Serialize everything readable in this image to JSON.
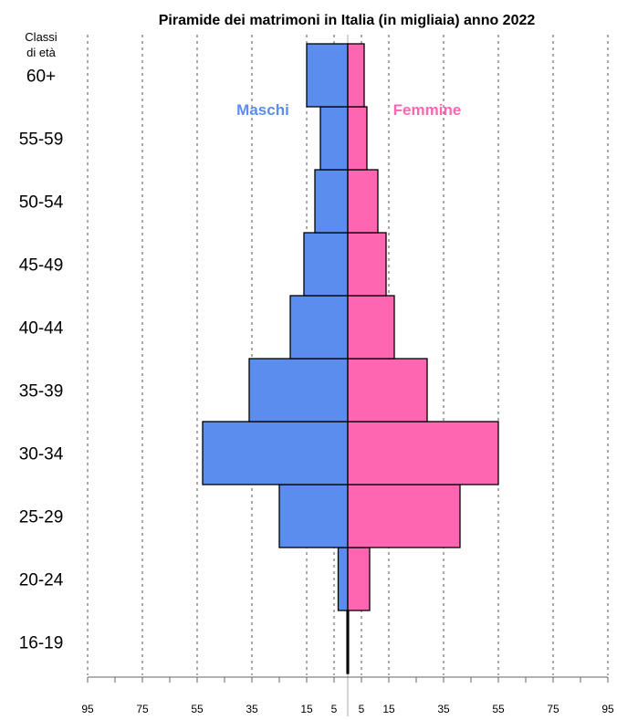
{
  "chart_data": {
    "type": "bar",
    "orientation": "horizontal-population-pyramid",
    "title": "Piramide dei matrimoni in Italia (in migliaia) anno 2022",
    "y_header": [
      "Classi",
      "di età"
    ],
    "categories": [
      "16-19",
      "20-24",
      "25-29",
      "30-34",
      "35-39",
      "40-44",
      "45-49",
      "50-54",
      "55-59",
      "60+"
    ],
    "series": [
      {
        "name": "Maschi",
        "color": "#5b8def",
        "side": "left",
        "values": [
          0.3,
          3.5,
          25,
          53,
          36,
          21,
          16,
          12,
          10,
          15
        ]
      },
      {
        "name": "Femmine",
        "color": "#ff66b2",
        "side": "right",
        "values": [
          0.3,
          8,
          41,
          55,
          29,
          17,
          14,
          11,
          7,
          6
        ]
      }
    ],
    "x_ticks": [
      "95",
      "75",
      "55",
      "35",
      "15",
      "5",
      "5",
      "15",
      "35",
      "55",
      "75",
      "95"
    ],
    "x_tick_values": [
      -95,
      -75,
      -55,
      -35,
      -15,
      -5,
      5,
      15,
      35,
      55,
      75,
      95
    ],
    "xlim": [
      -95,
      95
    ],
    "grid": "vertical dashed",
    "legend": "inside top, labels beside bars"
  }
}
